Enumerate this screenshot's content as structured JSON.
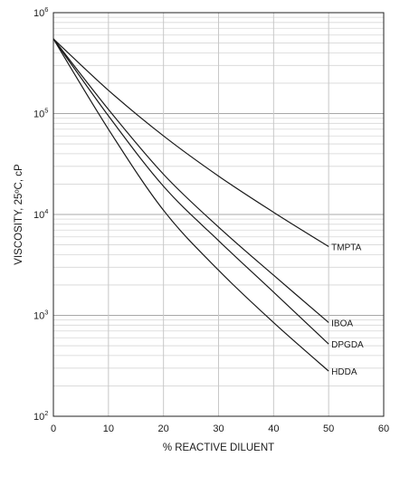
{
  "chart_data": {
    "type": "line",
    "title": "",
    "xlabel": "% REACTIVE DILUENT",
    "ylabel": "VISCOSITY, 25ºC, cP",
    "xlim": [
      0,
      60
    ],
    "ylim": [
      100,
      1000000
    ],
    "yscale": "log",
    "grid": true,
    "x_ticks": [
      0,
      10,
      20,
      30,
      40,
      50,
      60
    ],
    "y_ticks": [
      {
        "base": "10",
        "exp": "2",
        "value": 100
      },
      {
        "base": "10",
        "exp": "3",
        "value": 1000
      },
      {
        "base": "10",
        "exp": "4",
        "value": 10000
      },
      {
        "base": "10",
        "exp": "5",
        "value": 100000
      },
      {
        "base": "10",
        "exp": "6",
        "value": 1000000
      }
    ],
    "x": [
      0,
      10,
      20,
      30,
      40,
      50
    ],
    "series": [
      {
        "name": "TMPTA",
        "values": [
          550000,
          170000,
          60000,
          24000,
          10500,
          4800
        ]
      },
      {
        "name": "IBOA",
        "values": [
          550000,
          110000,
          25000,
          7500,
          2500,
          850
        ]
      },
      {
        "name": "DPGDA",
        "values": [
          550000,
          95000,
          19000,
          5500,
          1700,
          520
        ]
      },
      {
        "name": "HDDA",
        "values": [
          550000,
          70000,
          11000,
          2800,
          850,
          280
        ]
      }
    ]
  }
}
